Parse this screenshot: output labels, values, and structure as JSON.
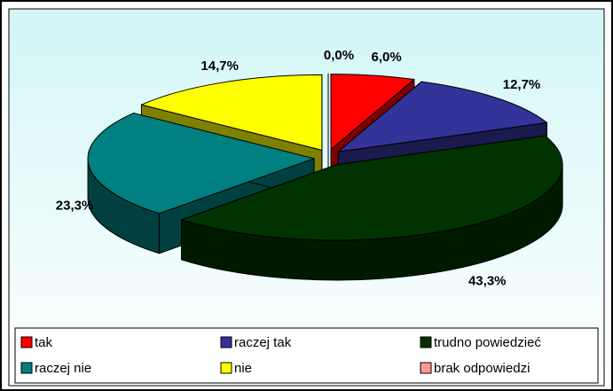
{
  "chart_data": {
    "type": "pie",
    "categories": [
      "tak",
      "raczej tak",
      "trudno powiedzieć",
      "raczej nie",
      "nie",
      "brak odpowiedzi"
    ],
    "values": [
      6.0,
      12.7,
      43.3,
      23.3,
      14.7,
      0.0
    ],
    "value_labels": [
      "6,0%",
      "12,7%",
      "43,3%",
      "23,3%",
      "14,7%",
      "0,0%"
    ],
    "colors": [
      "#FF0000",
      "#333399",
      "#003300",
      "#008080",
      "#FFFF00",
      "#FF9999"
    ],
    "legend": "bottom"
  }
}
